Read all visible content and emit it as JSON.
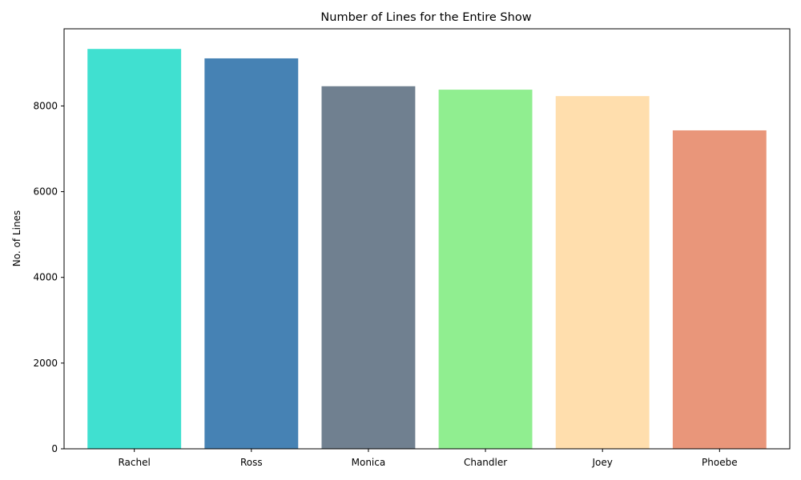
{
  "chart_data": {
    "type": "bar",
    "title": "Number of Lines for the Entire Show",
    "xlabel": "",
    "ylabel": "No. of Lines",
    "categories": [
      "Rachel",
      "Ross",
      "Monica",
      "Chandler",
      "Joey",
      "Phoebe"
    ],
    "values": [
      9330,
      9110,
      8460,
      8380,
      8230,
      7430
    ],
    "colors": [
      "#40e0d0",
      "#4682b4",
      "#708090",
      "#90ee90",
      "#ffdead",
      "#e9967a"
    ],
    "ylim": [
      0,
      9800
    ],
    "yticks": [
      0,
      2000,
      4000,
      6000,
      8000
    ],
    "grid": false,
    "legend": "none"
  }
}
